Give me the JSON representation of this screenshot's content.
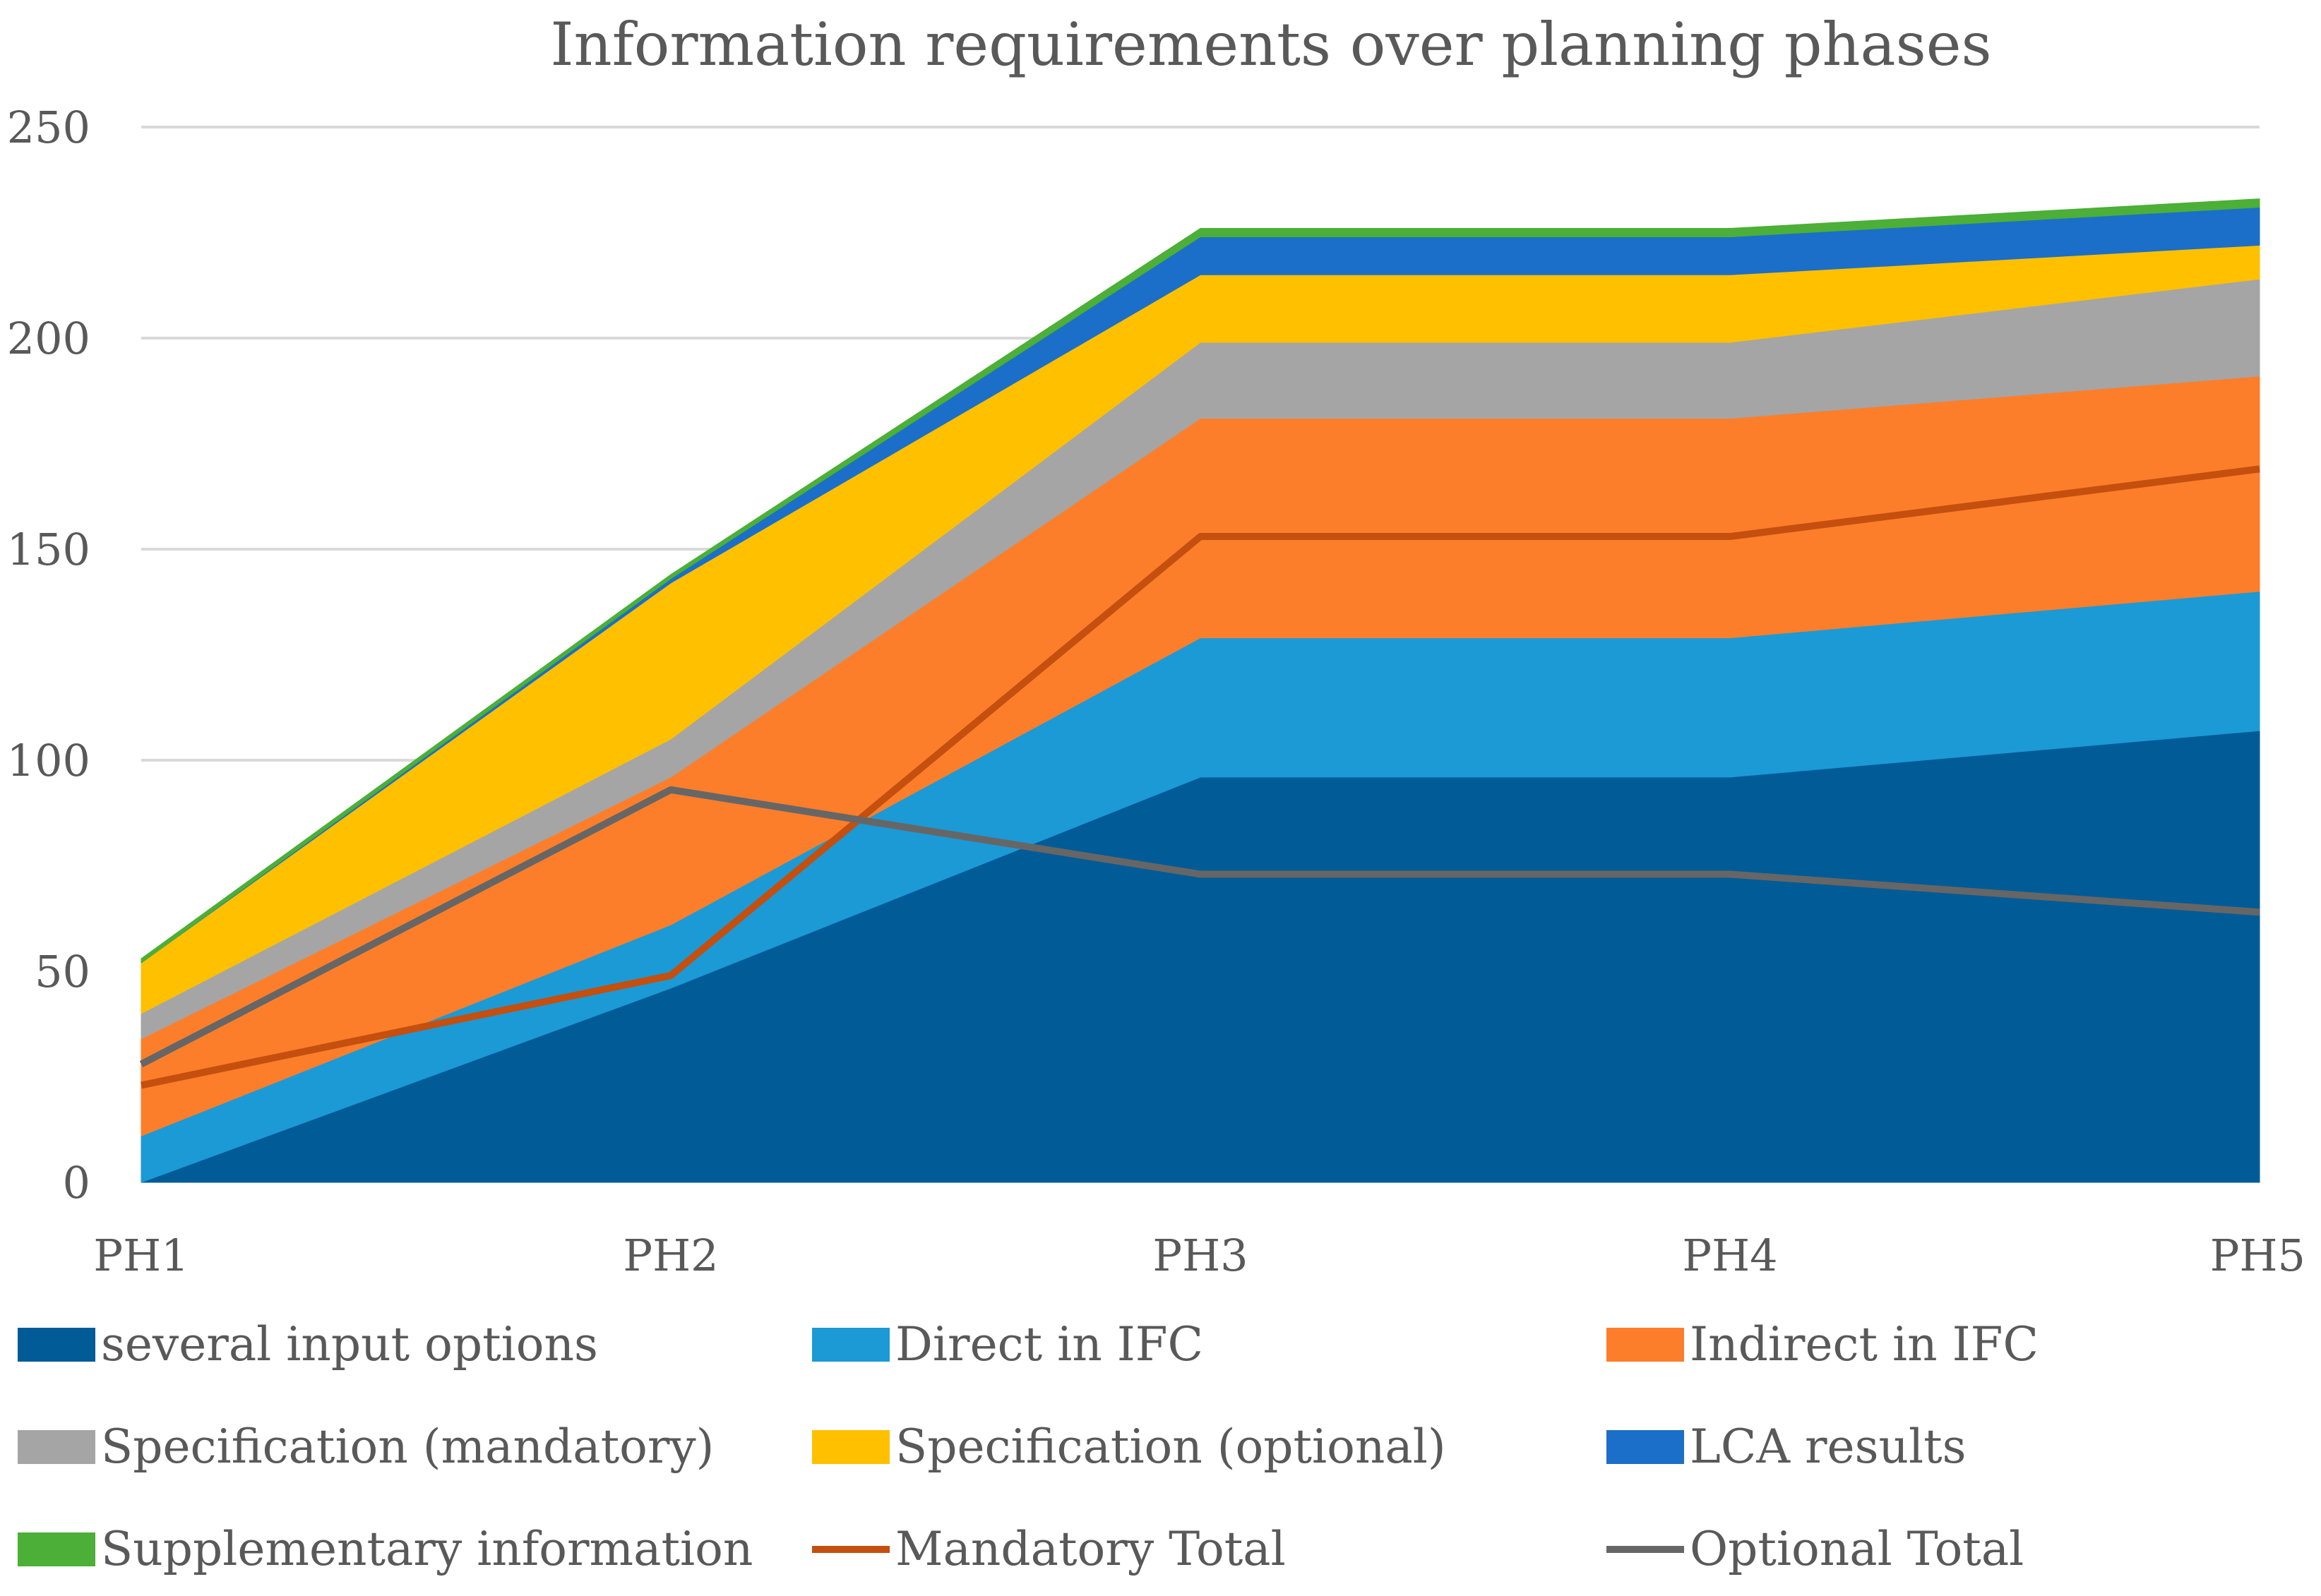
{
  "chart_data": {
    "type": "area",
    "title": "Information requirements over planning phases",
    "categories": [
      "PH1",
      "PH2",
      "PH3",
      "PH4",
      "PH5"
    ],
    "ylim": [
      0,
      250
    ],
    "yticks": [
      0,
      50,
      100,
      150,
      200,
      250
    ],
    "grid": true,
    "legend_position": "bottom",
    "stack": [
      {
        "name": "several input options",
        "color": "#005b96",
        "values": [
          0,
          46,
          96,
          96,
          107
        ]
      },
      {
        "name": "Direct in IFC",
        "color": "#1b9ad6",
        "values": [
          11,
          15,
          33,
          33,
          33
        ]
      },
      {
        "name": "Indirect in IFC",
        "color": "#fd7e2a",
        "values": [
          23,
          35,
          52,
          52,
          51
        ]
      },
      {
        "name": "Specification (mandatory)",
        "color": "#a5a5a5",
        "values": [
          6,
          9,
          18,
          18,
          23
        ]
      },
      {
        "name": "Specification (optional)",
        "color": "#ffc000",
        "values": [
          12,
          37,
          16,
          16,
          8
        ]
      },
      {
        "name": "LCA results",
        "color": "#1b6fc8",
        "values": [
          0,
          1,
          9,
          9,
          9
        ]
      },
      {
        "name": "Supplementary information",
        "color": "#4caf37",
        "values": [
          1,
          1,
          2,
          2,
          2
        ]
      }
    ],
    "lines": [
      {
        "name": "Mandatory Total",
        "color": "#c44f0f",
        "values": [
          23,
          49,
          153,
          153,
          169
        ]
      },
      {
        "name": "Optional Total",
        "color": "#666666",
        "values": [
          28,
          93,
          73,
          73,
          64
        ]
      }
    ]
  }
}
